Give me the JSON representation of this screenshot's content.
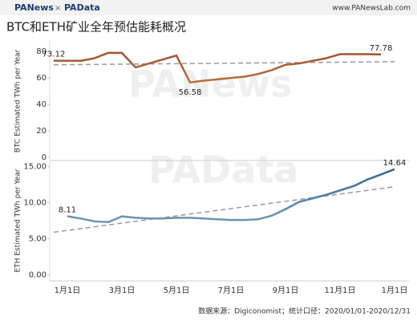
{
  "header": {
    "logo_left": "PANews",
    "logo_sep": "×",
    "logo_right": "PAData",
    "url": "www.PANewsLab.com"
  },
  "title": "BTC和ETH矿业全年预估能耗概况",
  "watermarks": [
    "PANews",
    "PAData"
  ],
  "source": "数据来源：Digiconomist；统计口径：2020/01/01-2020/12/31",
  "chart_data": [
    {
      "type": "line",
      "y_label": "BTC Estimated TWh per Year",
      "ylim": [
        0,
        85
      ],
      "yticks": [
        0,
        20,
        40,
        60,
        80
      ],
      "colors": [
        "#9c4a2c",
        "#f0c068"
      ],
      "series": [
        {
          "name": "BTC",
          "values": [
            73.12,
            73,
            73,
            75,
            79,
            79,
            68,
            71,
            74,
            77,
            56.58,
            58,
            59,
            60,
            61,
            63,
            66,
            70,
            71,
            73,
            75,
            78,
            78,
            78,
            77.78,
            null
          ]
        }
      ],
      "labeled": [
        0,
        10,
        24
      ],
      "trend": [
        70,
        72.3
      ],
      "trend_color": "#999999"
    },
    {
      "type": "line",
      "y_label": "ETH Estimated TWh per Year",
      "ylim": [
        -0.4,
        15.4
      ],
      "yticks": [
        {
          "value": 0,
          "label": "0.00"
        },
        {
          "value": 5,
          "label": "5.00"
        },
        {
          "value": 10,
          "label": "10.00"
        },
        {
          "value": 15,
          "label": "15.00"
        }
      ],
      "colors": [
        "#2f5f8a",
        "#a9cde0"
      ],
      "categories": [
        null,
        "1月1日",
        null,
        null,
        null,
        "3月1日",
        null,
        null,
        null,
        "5月1日",
        null,
        null,
        null,
        "7月1日",
        null,
        null,
        null,
        "9月1日",
        null,
        null,
        null,
        "11月1日",
        null,
        null,
        null,
        "1月1日"
      ],
      "series": [
        {
          "name": "ETH",
          "values": [
            null,
            8.11,
            7.8,
            7.4,
            7.3,
            8.1,
            7.9,
            7.8,
            7.8,
            7.9,
            7.9,
            7.8,
            7.7,
            7.6,
            7.6,
            7.7,
            8.2,
            9.1,
            10.1,
            10.6,
            11.1,
            11.7,
            12.3,
            13.2,
            13.9,
            14.64
          ]
        }
      ],
      "labeled": [
        1,
        25
      ],
      "trend": [
        5.9,
        12.2
      ],
      "trend_color": "#999999"
    }
  ]
}
